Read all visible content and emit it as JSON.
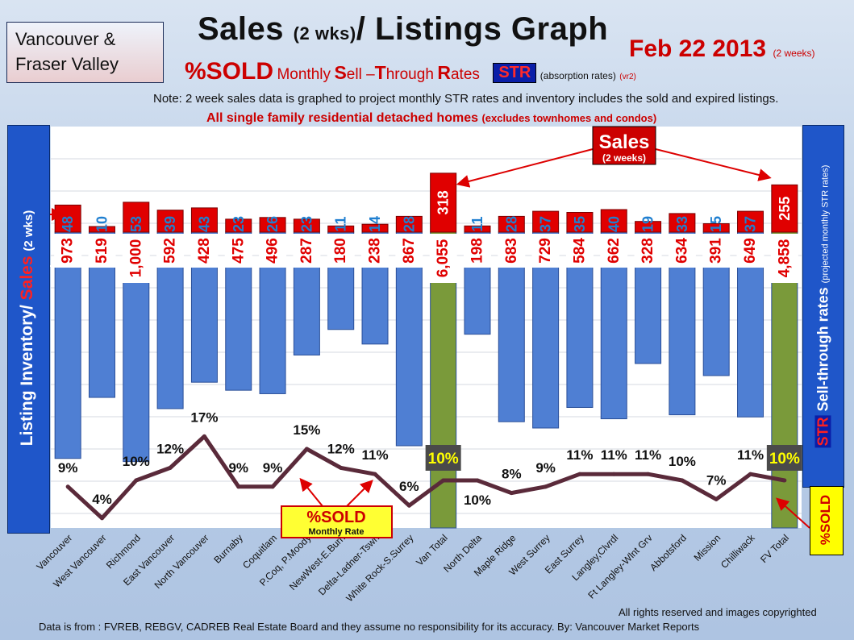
{
  "header": {
    "region_line1": "Vancouver &",
    "region_line2": "Fraser Valley",
    "title_part1": "Sales",
    "title_part2": "(2 wks)",
    "title_part3": "/ Listings Graph",
    "date": "Feb 22 2013",
    "date_note": "(2 weeks)",
    "sold_label": "%SOLD",
    "subtitle_monthly": "Monthly",
    "subtitle_s": "S",
    "subtitle_ell": "ell –",
    "subtitle_t": "T",
    "subtitle_hrough": "hrough",
    "subtitle_r": "R",
    "subtitle_ates": "ates",
    "str_badge": "STR",
    "absorption_note": "(absorption rates)",
    "version": "(vr2)",
    "note": "Note: 2 week sales data is graphed to project monthly STR rates and inventory includes the sold and expired listings.",
    "scope": "All single family residential detached homes",
    "scope_note": "(excludes townhomes and condos)"
  },
  "side_labels": {
    "left_inventory": "Listing Inventory",
    "left_slash": "/",
    "left_sales": "Sales",
    "left_period": "(2 wks)",
    "right_str": "STR",
    "right_label": "Sell-through rates",
    "right_note": "(projected monthly STR rates)",
    "sold_tag": "%SOLD"
  },
  "annotations": {
    "sales_callout": "Sales",
    "sales_callout_note": "(2 weeks)",
    "sold_callout": "%SOLD",
    "sold_callout_note": "Monthly Rate"
  },
  "footer": {
    "rights": "All rights reserved and  images copyrighted",
    "source": "Data is  from : FVREB, REBGV, CADREB Real Estate Board and they assume no responsibility  for its accuracy. By: Vancouver Market Reports"
  },
  "colors": {
    "inventory_bar": "#4f7fd3",
    "total_bar": "#7a9a3a",
    "sales_bar": "#e00000",
    "sales_label_regular": "#1f7fd0",
    "inventory_label": "#e00000",
    "line": "#5a2a3a",
    "total_pct_bg": "#4a4a4a",
    "total_pct_text": "#ffff00"
  },
  "chart_data": {
    "type": "bar",
    "categories": [
      "Vancouver",
      "West Vancouver",
      "Richmond",
      "East Vancouver",
      "North Vancouver",
      "Burnaby",
      "Coquitlam",
      "P.Coq, P.Moody",
      "NewWest-E.Burn",
      "Delta-Ladner-Tswn",
      "White Rock-S.Surrey",
      "Van Total",
      "North Delta",
      "Maple Ridge",
      "West Surrey",
      "East Surrey",
      "Langley,Clvrdl",
      "Ft Langley-Wlnt Grv",
      "Abbotsford",
      "Mission",
      "Chilliwack",
      "FV Total"
    ],
    "series": [
      {
        "name": "Listing Inventory",
        "values": [
          973,
          519,
          1000,
          592,
          428,
          475,
          496,
          287,
          180,
          238,
          867,
          6055,
          198,
          683,
          729,
          584,
          662,
          328,
          634,
          391,
          649,
          4858
        ],
        "labels": [
          "973",
          "519",
          "1,000",
          "592",
          "428",
          "475",
          "496",
          "287",
          "180",
          "238",
          "867",
          "6,055",
          "198",
          "683",
          "729",
          "584",
          "662",
          "328",
          "634",
          "391",
          "649",
          "4,858"
        ]
      },
      {
        "name": "Sales",
        "values": [
          48,
          10,
          53,
          39,
          43,
          23,
          26,
          23,
          11,
          14,
          28,
          318,
          11,
          28,
          37,
          35,
          40,
          19,
          33,
          15,
          37,
          255
        ]
      },
      {
        "name": "%SOLD",
        "values": [
          9,
          4,
          10,
          12,
          17,
          9,
          9,
          15,
          12,
          11,
          6,
          10,
          10,
          8,
          9,
          11,
          11,
          11,
          10,
          7,
          11,
          10
        ]
      }
    ],
    "totals": [
      "Van Total",
      "FV Total"
    ],
    "grid": true
  }
}
